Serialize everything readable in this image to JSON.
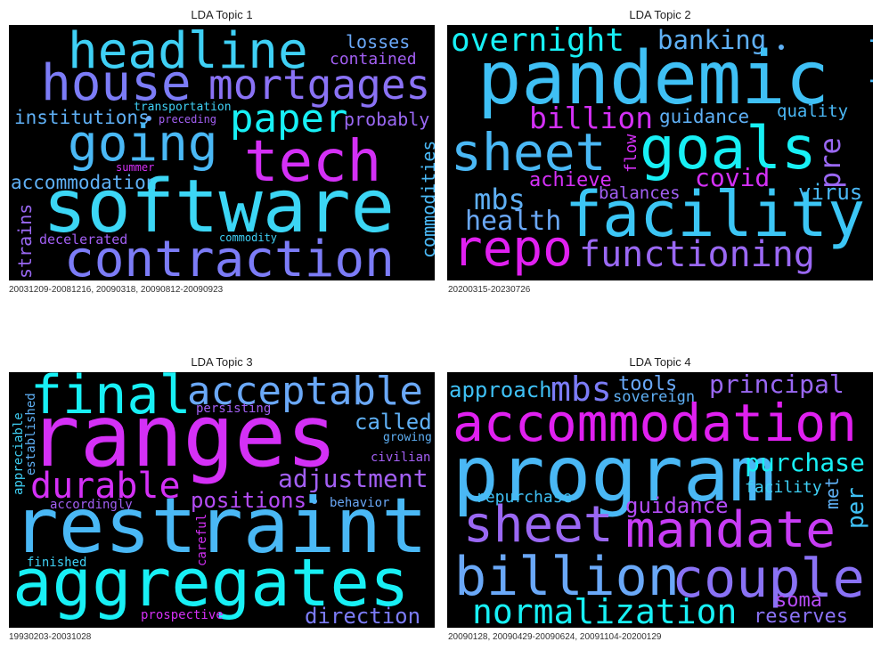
{
  "panels": [
    {
      "title": "LDA Topic 1",
      "caption": "20031209-20081216, 20090318, 20090812-20090923",
      "words": [
        "headline",
        "house",
        "mortgages",
        "losses",
        "contained",
        "paper",
        "institutions",
        "transportation",
        "preceding",
        "probably",
        "going",
        "tech",
        "accommodation",
        "summer",
        "software",
        "commodities",
        "strains",
        "decelerated",
        "commodity",
        "contraction"
      ]
    },
    {
      "title": "LDA Topic 2",
      "caption": "20200315-20230726",
      "words": [
        "overnight",
        "banking",
        "pandemic",
        "remarked",
        "billion",
        "guidance",
        "quality",
        "sheet",
        "goals",
        "pre",
        "flow",
        "achieve",
        "covid",
        "mbs",
        "balances",
        "virus",
        "health",
        "facility",
        "repo",
        "functioning"
      ]
    },
    {
      "title": "LDA Topic 3",
      "caption": "19930203-20031028",
      "words": [
        "final",
        "acceptable",
        "ranges",
        "persisting",
        "called",
        "growing",
        "appreciable",
        "established",
        "durable",
        "adjustment",
        "civilian",
        "positions",
        "accordingly",
        "behavior",
        "restraint",
        "careful",
        "finished",
        "aggregates",
        "prospective",
        "direction"
      ]
    },
    {
      "title": "LDA Topic 4",
      "caption": "20090128, 20090429-20090624, 20091104-20200129",
      "words": [
        "approach",
        "mbs",
        "tools",
        "principal",
        "sovereign",
        "accommodation",
        "program",
        "purchase",
        "facility",
        "repurchase",
        "met",
        "per",
        "guidance",
        "sheet",
        "mandate",
        "billion",
        "couple",
        "soma",
        "normalization",
        "reserves"
      ]
    }
  ]
}
